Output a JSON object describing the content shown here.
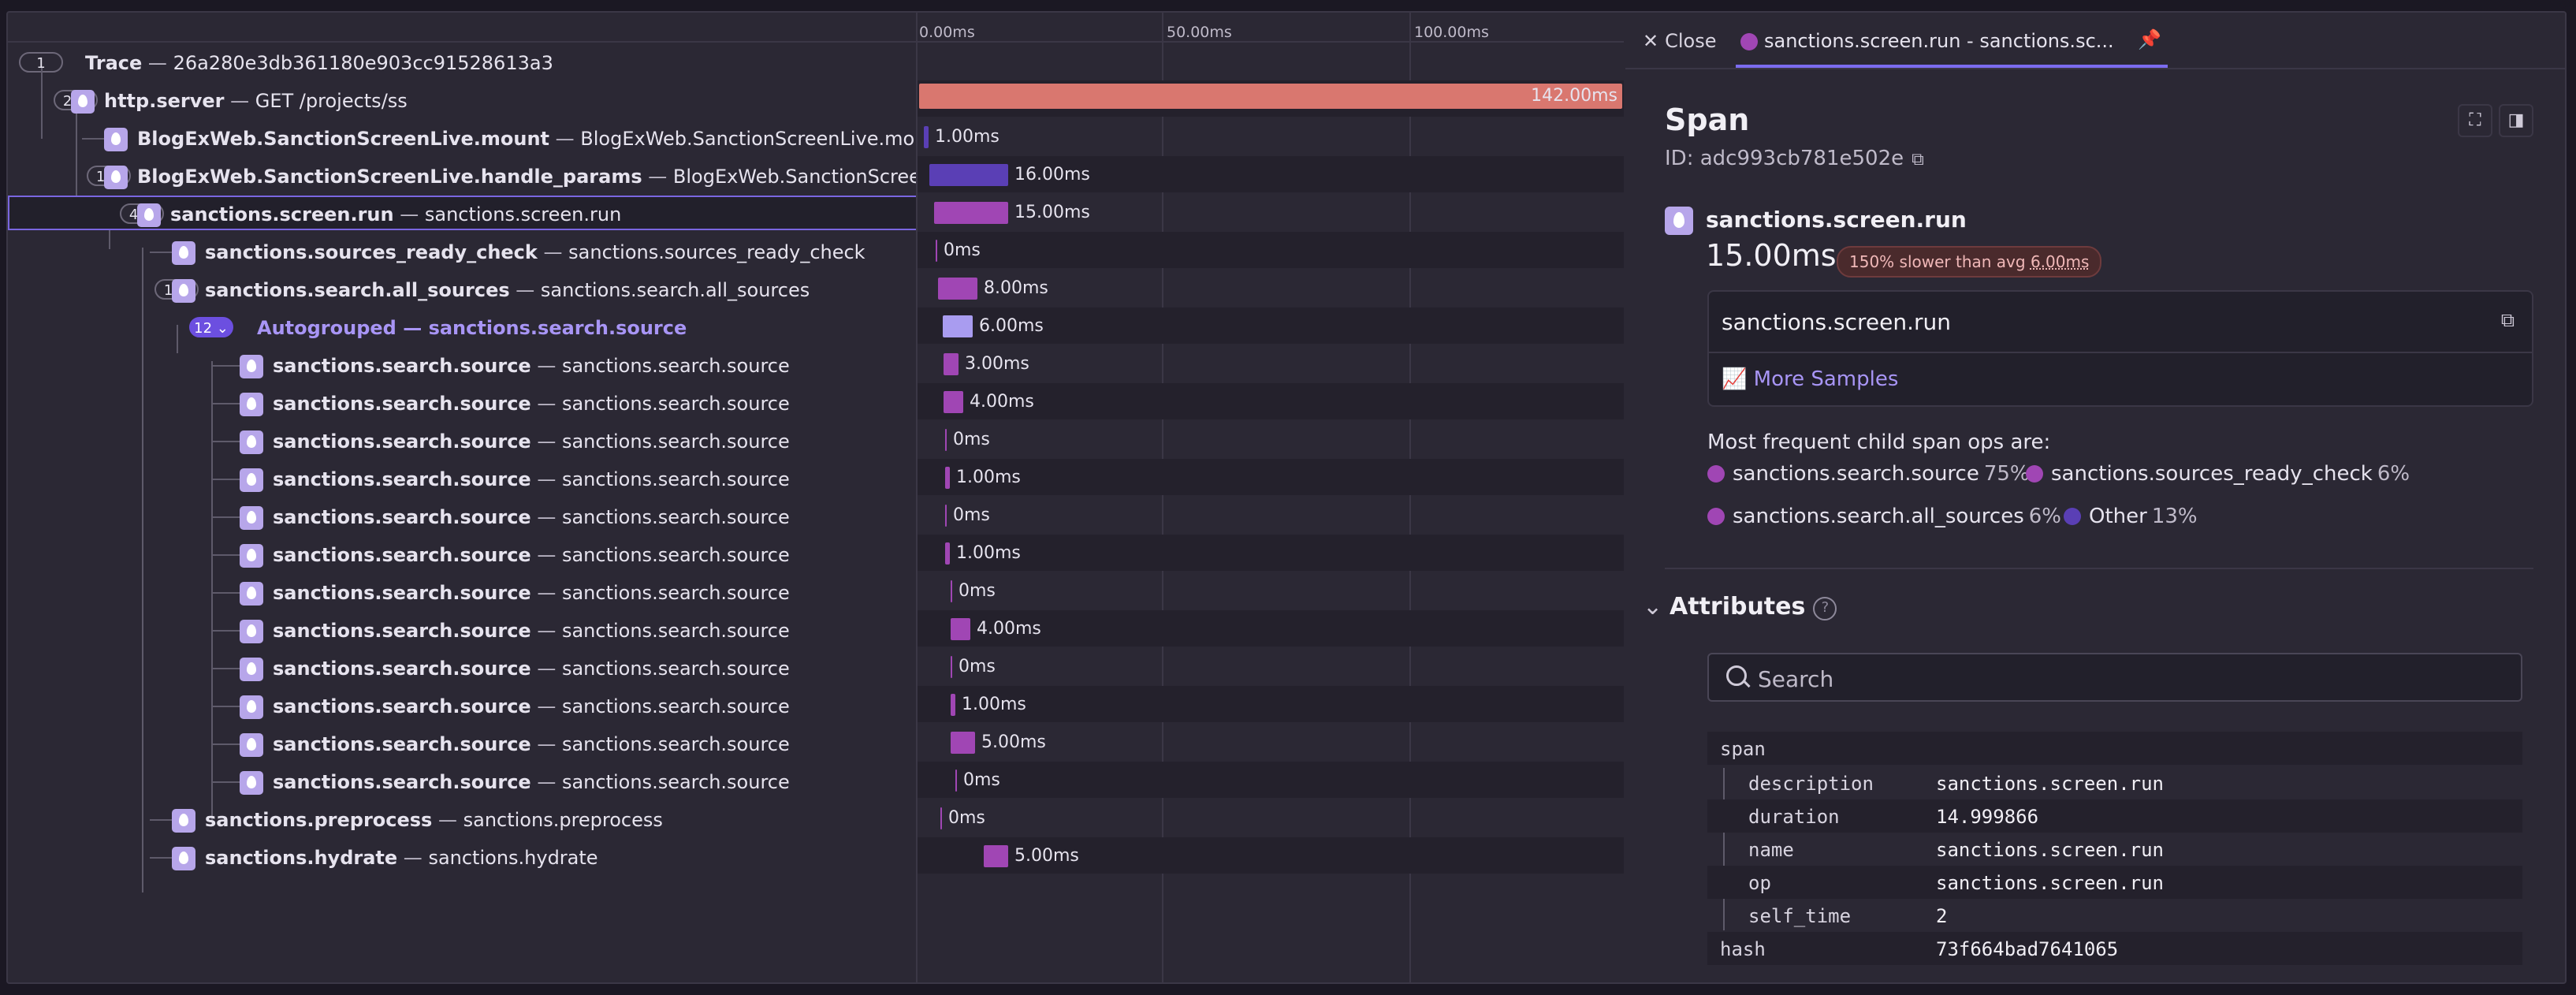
{
  "trace": {
    "label": "Trace",
    "id": "26a280e3db361180e903cc91528613a3",
    "badge": "1"
  },
  "rows": [
    {
      "badge": "2",
      "op": "http.server",
      "desc": "GET /projects/ss"
    },
    {
      "op": "BlogExWeb.SanctionScreenLive.mount",
      "desc": "BlogExWeb.SanctionScreenLive.mount"
    },
    {
      "badge": "1",
      "op": "BlogExWeb.SanctionScreenLive.handle_params",
      "desc": "BlogExWeb.SanctionScreenLive.handle_params"
    },
    {
      "badge": "4",
      "op": "sanctions.screen.run",
      "desc": "sanctions.screen.run"
    },
    {
      "op": "sanctions.sources_ready_check",
      "desc": "sanctions.sources_ready_check"
    },
    {
      "badge": "1",
      "op": "sanctions.search.all_sources",
      "desc": "sanctions.search.all_sources"
    },
    {
      "badge": "12",
      "op": "Autogrouped",
      "desc": "sanctions.search.source"
    },
    {
      "op": "sanctions.search.source",
      "desc": "sanctions.search.source"
    },
    {
      "op": "sanctions.search.source",
      "desc": "sanctions.search.source"
    },
    {
      "op": "sanctions.search.source",
      "desc": "sanctions.search.source"
    },
    {
      "op": "sanctions.search.source",
      "desc": "sanctions.search.source"
    },
    {
      "op": "sanctions.search.source",
      "desc": "sanctions.search.source"
    },
    {
      "op": "sanctions.search.source",
      "desc": "sanctions.search.source"
    },
    {
      "op": "sanctions.search.source",
      "desc": "sanctions.search.source"
    },
    {
      "op": "sanctions.search.source",
      "desc": "sanctions.search.source"
    },
    {
      "op": "sanctions.search.source",
      "desc": "sanctions.search.source"
    },
    {
      "op": "sanctions.search.source",
      "desc": "sanctions.search.source"
    },
    {
      "op": "sanctions.search.source",
      "desc": "sanctions.search.source"
    },
    {
      "op": "sanctions.search.source",
      "desc": "sanctions.search.source"
    },
    {
      "op": "sanctions.preprocess",
      "desc": "sanctions.preprocess"
    },
    {
      "op": "sanctions.hydrate",
      "desc": "sanctions.hydrate"
    }
  ],
  "timeline": {
    "ticks": [
      "0.00ms",
      "50.00ms",
      "100.00ms"
    ],
    "bars": [
      {
        "start": 0,
        "dur": 142,
        "label": "142.00ms",
        "color": "#d9776f"
      },
      {
        "start": 1,
        "dur": 1,
        "label": "1.00ms",
        "color": "#5a3fb5"
      },
      {
        "start": 2,
        "dur": 16,
        "label": "16.00ms",
        "color": "#5a3fb5"
      },
      {
        "start": 3,
        "dur": 15,
        "label": "15.00ms",
        "color": "#a046b4"
      },
      {
        "start": 3.3,
        "dur": 0,
        "label": "0ms",
        "color": "#a046b4"
      },
      {
        "start": 3.8,
        "dur": 8,
        "label": "8.00ms",
        "color": "#a046b4"
      },
      {
        "start": 4.8,
        "dur": 6,
        "label": "6.00ms",
        "color": "#a99cf0"
      },
      {
        "start": 5,
        "dur": 3,
        "label": "3.00ms",
        "color": "#a046b4"
      },
      {
        "start": 5,
        "dur": 4,
        "label": "4.00ms",
        "color": "#a046b4"
      },
      {
        "start": 5.3,
        "dur": 0,
        "label": "0ms",
        "color": "#a046b4"
      },
      {
        "start": 5.3,
        "dur": 1,
        "label": "1.00ms",
        "color": "#a046b4"
      },
      {
        "start": 5.3,
        "dur": 0,
        "label": "0ms",
        "color": "#a046b4"
      },
      {
        "start": 5.3,
        "dur": 1,
        "label": "1.00ms",
        "color": "#a046b4"
      },
      {
        "start": 6.3,
        "dur": 0,
        "label": "0ms",
        "color": "#a046b4"
      },
      {
        "start": 6.3,
        "dur": 4,
        "label": "4.00ms",
        "color": "#a046b4"
      },
      {
        "start": 6.3,
        "dur": 0,
        "label": "0ms",
        "color": "#a046b4"
      },
      {
        "start": 6.3,
        "dur": 1,
        "label": "1.00ms",
        "color": "#a046b4"
      },
      {
        "start": 6.3,
        "dur": 5,
        "label": "5.00ms",
        "color": "#a046b4"
      },
      {
        "start": 7.3,
        "dur": 0,
        "label": "0ms",
        "color": "#a046b4"
      },
      {
        "start": 4.3,
        "dur": 0,
        "label": "0ms",
        "color": "#a046b4"
      },
      {
        "start": 13,
        "dur": 5,
        "label": "5.00ms",
        "color": "#a046b4"
      }
    ]
  },
  "panel": {
    "close_label": "Close",
    "tab_label": "sanctions.screen.run - sanctions.sc...",
    "title": "Span",
    "id_label": "ID: adc993cb781e502e",
    "op_name": "sanctions.screen.run",
    "duration": "15.00ms",
    "slow_text": "150% slower than avg",
    "slow_avg": "6.00ms",
    "description": "sanctions.screen.run",
    "more_samples": "More Samples",
    "freq_title": "Most frequent child span ops are:",
    "freq": [
      {
        "name": "sanctions.search.source",
        "pct": "75%",
        "color": "#a046b4"
      },
      {
        "name": "sanctions.sources_ready_check",
        "pct": "6%",
        "color": "#a046b4"
      },
      {
        "name": "sanctions.search.all_sources",
        "pct": "6%",
        "color": "#a046b4"
      },
      {
        "name": "Other",
        "pct": "13%",
        "color": "#5a3fb5"
      }
    ],
    "attributes_label": "Attributes",
    "search_placeholder": "Search",
    "attrs": [
      {
        "k": "span",
        "v": ""
      },
      {
        "k": "description",
        "v": "sanctions.screen.run"
      },
      {
        "k": "duration",
        "v": "14.999866"
      },
      {
        "k": "name",
        "v": "sanctions.screen.run"
      },
      {
        "k": "op",
        "v": "sanctions.screen.run"
      },
      {
        "k": "self_time",
        "v": "2"
      },
      {
        "k": "hash",
        "v": "73f664bad7641065"
      }
    ]
  },
  "icons": {
    "span_icon": "elixir-drop-icon",
    "close": "close-icon",
    "pin": "pin-icon",
    "copy": "copy-icon",
    "chart": "chart-icon",
    "focus": "focus-icon",
    "sidebar": "sidebar-toggle-icon",
    "chevron": "chevron-down-icon",
    "search": "search-icon",
    "help": "help-icon"
  }
}
